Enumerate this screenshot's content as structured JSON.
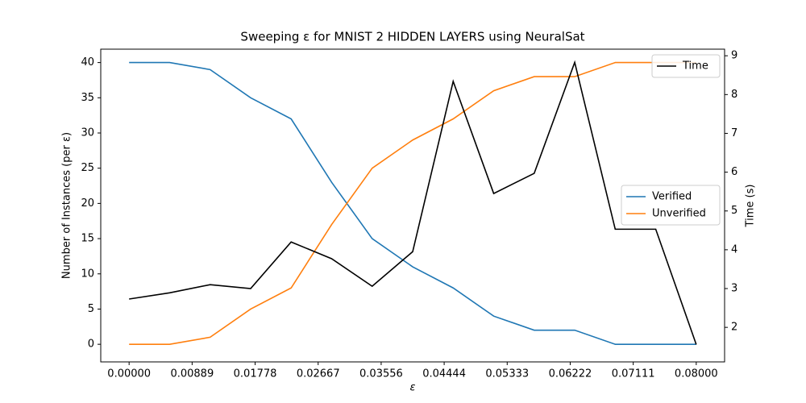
{
  "chart_data": {
    "type": "line",
    "title": "Sweeping ε for MNIST 2 HIDDEN LAYERS using NeuralSat",
    "x_label": "ε",
    "y_label": "Number of Instances (per ε)",
    "y2_label": "Time (s)",
    "x": [
      0,
      0.005714,
      0.011429,
      0.017143,
      0.022857,
      0.028571,
      0.034286,
      0.04,
      0.045714,
      0.051429,
      0.057143,
      0.062857,
      0.068571,
      0.074286,
      0.08
    ],
    "series": [
      {
        "name": "Verified",
        "color": "#1f77b4",
        "values": [
          40,
          40,
          39,
          35,
          32,
          23,
          15,
          11,
          8,
          4,
          2,
          2,
          0,
          0,
          0
        ]
      },
      {
        "name": "Unverified",
        "color": "#ff7f0e",
        "values": [
          0,
          0,
          1,
          5,
          8,
          17,
          25,
          29,
          32,
          36,
          38,
          38,
          40,
          40,
          40
        ]
      },
      {
        "name": "Time",
        "color": "#000000",
        "axis": "y2",
        "values": [
          2.73,
          2.89,
          3.1,
          3.0,
          4.2,
          3.77,
          3.06,
          3.95,
          8.34,
          5.45,
          5.97,
          8.83,
          4.53,
          4.53,
          1.56
        ]
      }
    ],
    "xlim": [
      -0.004,
      0.084
    ],
    "xticks": [
      {
        "value": 0,
        "label": "0.00000"
      },
      {
        "value": 0.008889,
        "label": "0.00889"
      },
      {
        "value": 0.017778,
        "label": "0.01778"
      },
      {
        "value": 0.026667,
        "label": "0.02667"
      },
      {
        "value": 0.035556,
        "label": "0.03556"
      },
      {
        "value": 0.044444,
        "label": "0.04444"
      },
      {
        "value": 0.053333,
        "label": "0.05333"
      },
      {
        "value": 0.062222,
        "label": "0.06222"
      },
      {
        "value": 0.071111,
        "label": "0.07111"
      },
      {
        "value": 0.08,
        "label": "0.08000"
      }
    ],
    "ylim": [
      -2.5,
      41.9
    ],
    "yticks": [
      0,
      5,
      10,
      15,
      20,
      25,
      30,
      35,
      40
    ],
    "y2lim": [
      1.11,
      9.17
    ],
    "y2ticks": [
      2,
      3,
      4,
      5,
      6,
      7,
      8,
      9
    ]
  }
}
